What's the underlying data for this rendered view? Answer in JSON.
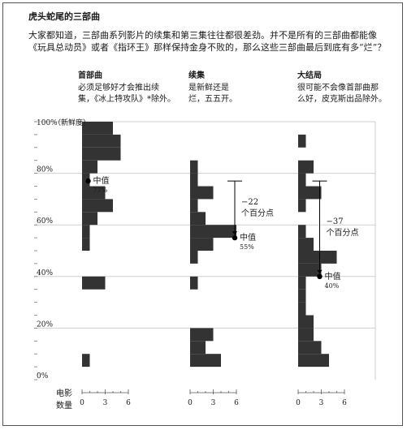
{
  "title": "虎头蛇尾的三部曲",
  "intro_lines": [
    "大家都知道，三部曲系列影片的续集和第三集往往都很差劲。并不是所有的三部曲都能像",
    "《玩具总动员》或者《指环王》那样保持金身不败的，那么这些三部曲最后到底有多“烂”？"
  ],
  "columns": [
    {
      "heading": "首部曲",
      "desc": [
        "必须足够好才会推出续",
        "集，《冰上特攻队》*除外。"
      ]
    },
    {
      "heading": "续集",
      "desc": [
        "是新鲜还是",
        "烂，五五开。"
      ]
    },
    {
      "heading": "大结局",
      "desc": [
        "很可能不会像首部曲那",
        "么好，皮克斯出品除外。"
      ]
    }
  ],
  "y_unit_label": "（新鲜度）",
  "x_axis_label": [
    "电影",
    "数量"
  ],
  "median_label": "中值",
  "colors": {
    "bar": "#333333",
    "grid": "#cfcfcf",
    "text": "#1a1a1a"
  },
  "chart_data": {
    "type": "bar",
    "orientation": "horizontal",
    "ylabel": "（新鲜度）",
    "xlabel": "电影 数量",
    "y_ticks": [
      "0%",
      "20%",
      "40%",
      "60%",
      "80%",
      "100%"
    ],
    "x_ticks": [
      "0",
      "3",
      "6"
    ],
    "ylim": [
      0,
      100
    ],
    "xlim": [
      0,
      6
    ],
    "bin_width": 5,
    "bin_starts": [
      0,
      5,
      10,
      15,
      20,
      25,
      30,
      35,
      40,
      45,
      50,
      55,
      60,
      65,
      70,
      75,
      80,
      85,
      90,
      95
    ],
    "series": [
      {
        "name": "首部曲",
        "counts": [
          0,
          1,
          0,
          0,
          0,
          0,
          0,
          3,
          0,
          0,
          1,
          1,
          2,
          4,
          3,
          1,
          2,
          5,
          5,
          4
        ],
        "median_value": "77%",
        "median": 77
      },
      {
        "name": "续集",
        "counts": [
          0,
          4,
          2,
          3,
          0,
          0,
          0,
          1,
          0,
          1,
          3,
          6,
          2,
          1,
          3,
          1,
          1,
          0,
          0,
          0
        ],
        "median_value": "55%",
        "median": 55
      },
      {
        "name": "大结局",
        "counts": [
          0,
          4,
          3,
          2,
          2,
          1,
          1,
          1,
          3,
          5,
          2,
          1,
          0,
          1,
          3,
          1,
          2,
          0,
          1,
          0
        ],
        "median_value": "40%",
        "median": 40
      }
    ],
    "annotations": [
      {
        "series": "续集",
        "text": [
          "−22",
          "个百分点"
        ],
        "from": 77,
        "to": 55
      },
      {
        "series": "大结局",
        "text": [
          "−37",
          "个百分点"
        ],
        "from": 77,
        "to": 40
      }
    ]
  }
}
